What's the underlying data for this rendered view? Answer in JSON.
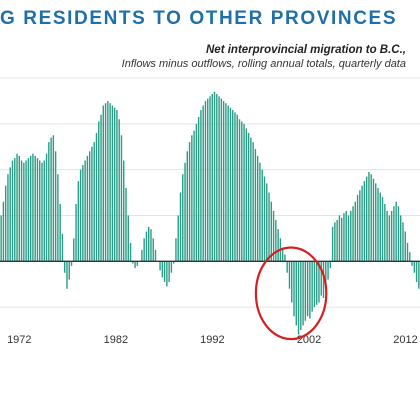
{
  "header": {
    "headline": "G RESIDENTS TO OTHER PROVINCES"
  },
  "colors": {
    "bars": "#2a9d86",
    "headline": "#1f6fa8",
    "highlight": "#d42020",
    "zero_line": "#333333",
    "grid": "#e4e4e4"
  },
  "chart_data": {
    "type": "bar",
    "title": "Net interprovincial migration to B.C.,",
    "subtitle": "Inflows minus outflows, rolling annual totals, quarterly data",
    "xlabel": "",
    "ylabel": "",
    "x_range": [
      1970.0,
      2013.5
    ],
    "ylim": [
      -30,
      80
    ],
    "grid": true,
    "x_tick_labels": [
      {
        "year": 1972,
        "label": "1972"
      },
      {
        "year": 1982,
        "label": "1982"
      },
      {
        "year": 1992,
        "label": "1992"
      },
      {
        "year": 2002,
        "label": "2002"
      },
      {
        "year": 2012,
        "label": "2012"
      }
    ],
    "highlight": {
      "shape": "ellipse",
      "x_range": [
        1996.5,
        2003.8
      ],
      "y_range": [
        -34,
        6
      ]
    },
    "series": [
      {
        "values": [
          20,
          26,
          33,
          38,
          41,
          44,
          45,
          47,
          46,
          44,
          43,
          44,
          45,
          46,
          47,
          46,
          45,
          44,
          43,
          44,
          47,
          52,
          54,
          55,
          48,
          38,
          25,
          12,
          -5,
          -12,
          -8,
          -2,
          10,
          25,
          35,
          40,
          42,
          44,
          46,
          48,
          50,
          52,
          56,
          61,
          64,
          68,
          69,
          70,
          69,
          68,
          67,
          66,
          62,
          55,
          44,
          32,
          20,
          8,
          -1,
          -3,
          -2,
          0,
          5,
          10,
          13,
          15,
          14,
          10,
          5,
          0,
          -4,
          -7,
          -9,
          -11,
          -9,
          -5,
          -1,
          10,
          20,
          30,
          38,
          43,
          48,
          52,
          55,
          57,
          60,
          63,
          66,
          68,
          70,
          71,
          72,
          73,
          74,
          73,
          72,
          71,
          70,
          69,
          68,
          67,
          66,
          65,
          64,
          62,
          61,
          60,
          58,
          56,
          54,
          52,
          49,
          46,
          43,
          40,
          37,
          34,
          30,
          26,
          22,
          18,
          14,
          10,
          6,
          3,
          -5,
          -12,
          -18,
          -24,
          -28,
          -32,
          -30,
          -28,
          -26,
          -24,
          -25,
          -22,
          -20,
          -19,
          -18,
          -15,
          -16,
          -12,
          -8,
          -3,
          15,
          17,
          18,
          20,
          19,
          21,
          22,
          20,
          22,
          24,
          26,
          29,
          31,
          33,
          35,
          37,
          39,
          38,
          36,
          34,
          32,
          30,
          28,
          25,
          22,
          20,
          22,
          24,
          26,
          24,
          20,
          17,
          13,
          8,
          4,
          -2,
          -5,
          -9,
          -12
        ]
      }
    ]
  }
}
